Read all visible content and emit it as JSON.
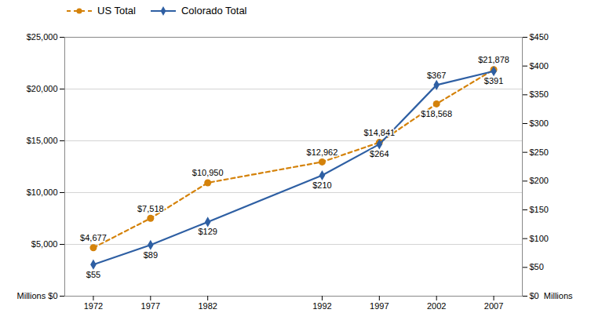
{
  "chart_data": {
    "type": "line",
    "x": [
      1972,
      1977,
      1982,
      1992,
      1997,
      2002,
      2007
    ],
    "xlim": [
      1969.5,
      2009.5
    ],
    "xticks": [
      1972,
      1977,
      1982,
      1992,
      1997,
      2002,
      2007
    ],
    "ylim": [
      0,
      25000
    ],
    "yticks": [
      {
        "value": 0,
        "label": "Millions $0"
      },
      {
        "value": 5000,
        "label": "$5,000"
      },
      {
        "value": 10000,
        "label": "$10,000"
      },
      {
        "value": 15000,
        "label": "$15,000"
      },
      {
        "value": 20000,
        "label": "$20,000"
      },
      {
        "value": 25000,
        "label": "$25,000"
      }
    ],
    "y2lim": [
      0,
      450
    ],
    "y2ticks": [
      {
        "value": 0,
        "label": "$0  Millions"
      },
      {
        "value": 50,
        "label": "$50"
      },
      {
        "value": 100,
        "label": "$100"
      },
      {
        "value": 150,
        "label": "$150"
      },
      {
        "value": 200,
        "label": "$200"
      },
      {
        "value": 250,
        "label": "$250"
      },
      {
        "value": 300,
        "label": "$300"
      },
      {
        "value": 350,
        "label": "$350"
      },
      {
        "value": 400,
        "label": "$400"
      },
      {
        "value": 450,
        "label": "$450"
      }
    ],
    "grid": true,
    "legend": "upper left",
    "data_labels": true,
    "series": [
      {
        "name": "US Total",
        "color": "#D4820A",
        "marker": "circle",
        "line_style": "dashed",
        "values": [
          4677,
          7518,
          10950,
          12962,
          14841,
          18568,
          21878
        ],
        "value_labels": [
          "$4,677",
          "$7,518",
          "$10,950",
          "$12,962",
          "$14,841",
          "$18,568",
          "$21,878"
        ]
      },
      {
        "name": "Colorado Total",
        "color": "#2E5FA3",
        "marker": "diamond",
        "line_style": "solid",
        "axis": "y2",
        "values": [
          55,
          89,
          129,
          210,
          264,
          367,
          391
        ],
        "value_labels": [
          "$55",
          "$89",
          "$129",
          "$210",
          "$264",
          "$367",
          "$391"
        ]
      }
    ]
  }
}
